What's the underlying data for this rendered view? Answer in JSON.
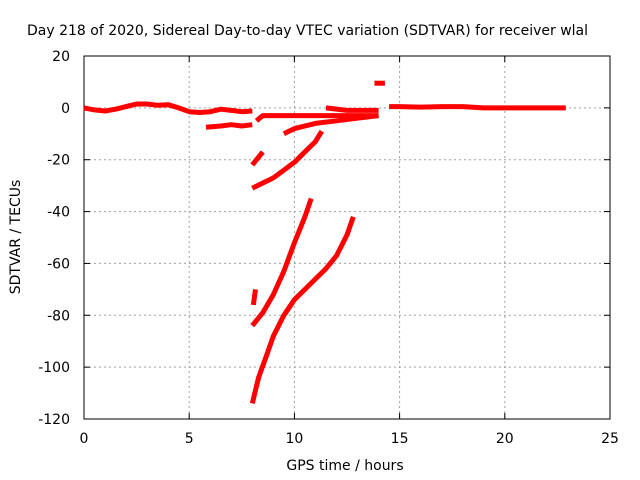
{
  "chart_data": {
    "type": "scatter",
    "title": "Day 218 of 2020, Sidereal Day-to-day VTEC variation (SDTVAR) for receiver wlal",
    "xlabel": "GPS time / hours",
    "ylabel": "SDTVAR / TECUs",
    "xlim": [
      0,
      25
    ],
    "ylim": [
      -120,
      20
    ],
    "xticks": [
      0,
      5,
      10,
      15,
      20,
      25
    ],
    "yticks": [
      -120,
      -100,
      -80,
      -60,
      -40,
      -20,
      0,
      20
    ],
    "grid": true,
    "color": "#ff0000",
    "series": [
      {
        "x": [
          0,
          0.5,
          1.0,
          1.5,
          2.0,
          2.5,
          3.0,
          3.5,
          4.0,
          4.5,
          5.0,
          5.5,
          6.0,
          6.5,
          7.0,
          7.5,
          8.0
        ],
        "y": [
          0,
          -0.8,
          -1.2,
          -0.5,
          0.5,
          1.5,
          1.5,
          1.0,
          1.2,
          0,
          -1.5,
          -1.8,
          -1.5,
          -0.5,
          -1.0,
          -1.5,
          -1.2
        ]
      },
      {
        "x": [
          5.8,
          6.5,
          7.0,
          7.5,
          8.0
        ],
        "y": [
          -7.5,
          -7.0,
          -6.5,
          -7.0,
          -6.5
        ]
      },
      {
        "x": [
          8.2,
          8.5,
          9.0,
          10.0,
          11.0,
          12.0,
          13.0,
          14.0
        ],
        "y": [
          -5,
          -3,
          -3,
          -3,
          -3,
          -3,
          -3,
          -3
        ]
      },
      {
        "x": [
          11.5,
          12.5,
          13.5,
          14.0
        ],
        "y": [
          0,
          -1,
          -1,
          -1
        ]
      },
      {
        "x": [
          9.5,
          10.0,
          11.0,
          12.0,
          13.0,
          14.0
        ],
        "y": [
          -10,
          -8,
          -6,
          -5,
          -4,
          -3
        ]
      },
      {
        "x": [
          13.8,
          14.3
        ],
        "y": [
          9.5,
          9.5
        ]
      },
      {
        "x": [
          14.5,
          15.0,
          16.0,
          17.0,
          18.0,
          19.0,
          20.0,
          21.0,
          22.0,
          22.9
        ],
        "y": [
          0.5,
          0.5,
          0.3,
          0.5,
          0.5,
          0,
          0,
          0,
          0,
          0
        ]
      },
      {
        "x": [
          8.0,
          8.5
        ],
        "y": [
          -22,
          -17
        ]
      },
      {
        "x": [
          8.0,
          8.5,
          9.0,
          9.5,
          10.0,
          10.5,
          11.0,
          11.3
        ],
        "y": [
          -31,
          -29,
          -27,
          -24,
          -21,
          -17,
          -13,
          -9
        ]
      },
      {
        "x": [
          8.05,
          8.1,
          8.15
        ],
        "y": [
          -76,
          -73,
          -70
        ]
      },
      {
        "x": [
          8.0,
          8.5,
          9.0,
          9.5,
          10.0,
          10.5,
          10.8
        ],
        "y": [
          -84,
          -79,
          -72,
          -63,
          -52,
          -42,
          -35
        ]
      },
      {
        "x": [
          8.0,
          8.3,
          8.7,
          9.0,
          9.5,
          10.0,
          10.5,
          11.0,
          11.5,
          12.0,
          12.5,
          12.8
        ],
        "y": [
          -114,
          -104,
          -95,
          -88,
          -80,
          -74,
          -70,
          -66,
          -62,
          -57,
          -49,
          -42
        ]
      }
    ]
  }
}
